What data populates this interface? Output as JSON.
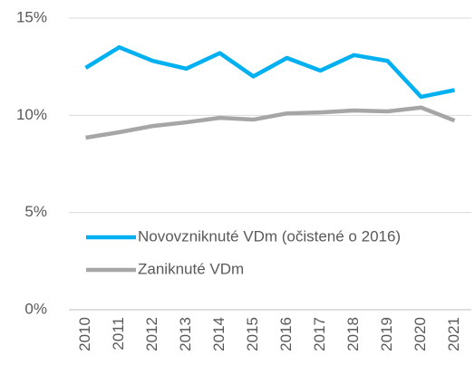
{
  "chart_data": {
    "type": "line",
    "categories": [
      "2010",
      "2011",
      "2012",
      "2013",
      "2014",
      "2015",
      "2016",
      "2017",
      "2018",
      "2019",
      "2020",
      "2021"
    ],
    "series": [
      {
        "name": "Novovzniknuté VDm (očistené o 2016)",
        "color": "#00b0f0",
        "values": [
          12.44,
          13.5,
          12.8,
          12.4,
          13.2,
          12.0,
          12.95,
          12.3,
          13.1,
          12.8,
          10.95,
          11.3
        ]
      },
      {
        "name": "Zaniknuté VDm",
        "color": "#a6a6a6",
        "values": [
          8.85,
          9.13,
          9.45,
          9.64,
          9.87,
          9.78,
          10.1,
          10.15,
          10.25,
          10.2,
          10.4,
          9.73
        ]
      }
    ],
    "ylim": [
      0,
      15
    ],
    "yticks": [
      {
        "value": 0,
        "label": "0%"
      },
      {
        "value": 5,
        "label": "5%"
      },
      {
        "value": 10,
        "label": "10%"
      },
      {
        "value": 15,
        "label": "15%"
      }
    ],
    "grid": true,
    "legend": "left"
  }
}
